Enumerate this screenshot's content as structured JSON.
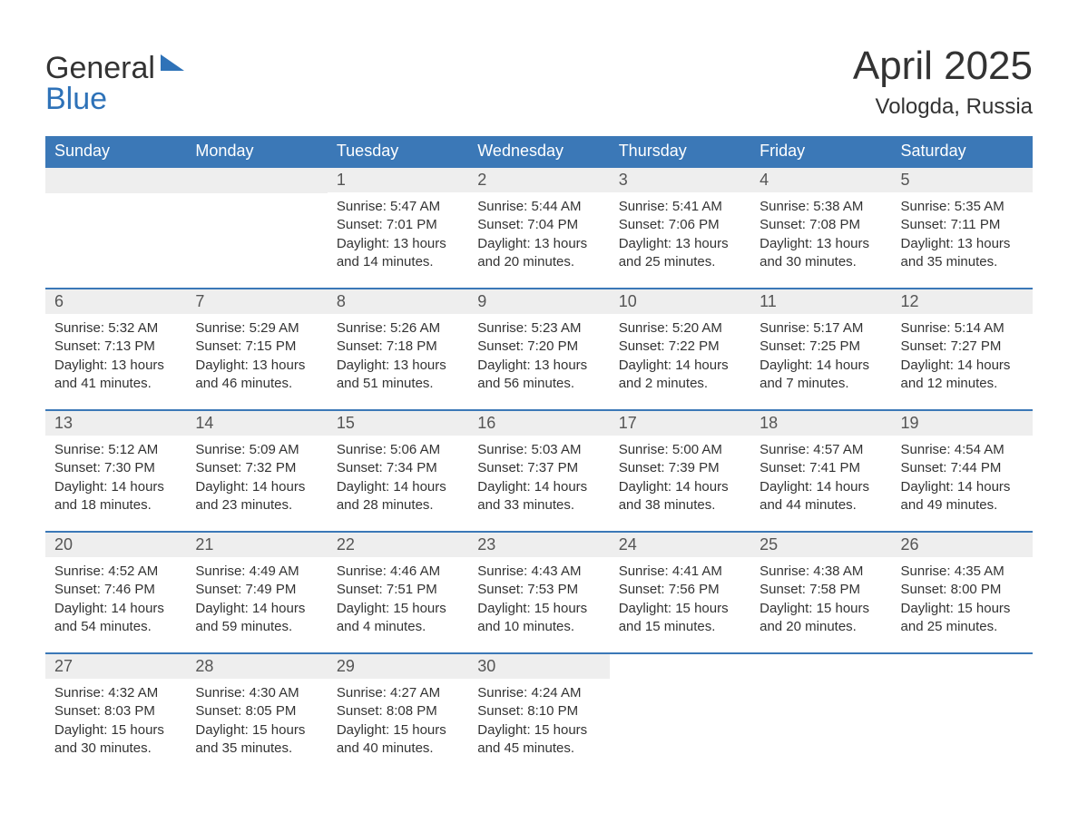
{
  "logo": {
    "text1": "General",
    "text2": "Blue"
  },
  "title": "April 2025",
  "location": "Vologda, Russia",
  "colors": {
    "header_bg": "#3b78b7",
    "header_text": "#ffffff",
    "daynum_bg": "#eeeeee",
    "body_text": "#333333",
    "logo_blue": "#2e72b8",
    "rule": "#3b78b7"
  },
  "weekdays": [
    "Sunday",
    "Monday",
    "Tuesday",
    "Wednesday",
    "Thursday",
    "Friday",
    "Saturday"
  ],
  "labels": {
    "sunrise": "Sunrise:",
    "sunset": "Sunset:",
    "daylight": "Daylight:"
  },
  "weeks": [
    [
      null,
      null,
      {
        "n": "1",
        "sunrise": "5:47 AM",
        "sunset": "7:01 PM",
        "daylight": "13 hours and 14 minutes."
      },
      {
        "n": "2",
        "sunrise": "5:44 AM",
        "sunset": "7:04 PM",
        "daylight": "13 hours and 20 minutes."
      },
      {
        "n": "3",
        "sunrise": "5:41 AM",
        "sunset": "7:06 PM",
        "daylight": "13 hours and 25 minutes."
      },
      {
        "n": "4",
        "sunrise": "5:38 AM",
        "sunset": "7:08 PM",
        "daylight": "13 hours and 30 minutes."
      },
      {
        "n": "5",
        "sunrise": "5:35 AM",
        "sunset": "7:11 PM",
        "daylight": "13 hours and 35 minutes."
      }
    ],
    [
      {
        "n": "6",
        "sunrise": "5:32 AM",
        "sunset": "7:13 PM",
        "daylight": "13 hours and 41 minutes."
      },
      {
        "n": "7",
        "sunrise": "5:29 AM",
        "sunset": "7:15 PM",
        "daylight": "13 hours and 46 minutes."
      },
      {
        "n": "8",
        "sunrise": "5:26 AM",
        "sunset": "7:18 PM",
        "daylight": "13 hours and 51 minutes."
      },
      {
        "n": "9",
        "sunrise": "5:23 AM",
        "sunset": "7:20 PM",
        "daylight": "13 hours and 56 minutes."
      },
      {
        "n": "10",
        "sunrise": "5:20 AM",
        "sunset": "7:22 PM",
        "daylight": "14 hours and 2 minutes."
      },
      {
        "n": "11",
        "sunrise": "5:17 AM",
        "sunset": "7:25 PM",
        "daylight": "14 hours and 7 minutes."
      },
      {
        "n": "12",
        "sunrise": "5:14 AM",
        "sunset": "7:27 PM",
        "daylight": "14 hours and 12 minutes."
      }
    ],
    [
      {
        "n": "13",
        "sunrise": "5:12 AM",
        "sunset": "7:30 PM",
        "daylight": "14 hours and 18 minutes."
      },
      {
        "n": "14",
        "sunrise": "5:09 AM",
        "sunset": "7:32 PM",
        "daylight": "14 hours and 23 minutes."
      },
      {
        "n": "15",
        "sunrise": "5:06 AM",
        "sunset": "7:34 PM",
        "daylight": "14 hours and 28 minutes."
      },
      {
        "n": "16",
        "sunrise": "5:03 AM",
        "sunset": "7:37 PM",
        "daylight": "14 hours and 33 minutes."
      },
      {
        "n": "17",
        "sunrise": "5:00 AM",
        "sunset": "7:39 PM",
        "daylight": "14 hours and 38 minutes."
      },
      {
        "n": "18",
        "sunrise": "4:57 AM",
        "sunset": "7:41 PM",
        "daylight": "14 hours and 44 minutes."
      },
      {
        "n": "19",
        "sunrise": "4:54 AM",
        "sunset": "7:44 PM",
        "daylight": "14 hours and 49 minutes."
      }
    ],
    [
      {
        "n": "20",
        "sunrise": "4:52 AM",
        "sunset": "7:46 PM",
        "daylight": "14 hours and 54 minutes."
      },
      {
        "n": "21",
        "sunrise": "4:49 AM",
        "sunset": "7:49 PM",
        "daylight": "14 hours and 59 minutes."
      },
      {
        "n": "22",
        "sunrise": "4:46 AM",
        "sunset": "7:51 PM",
        "daylight": "15 hours and 4 minutes."
      },
      {
        "n": "23",
        "sunrise": "4:43 AM",
        "sunset": "7:53 PM",
        "daylight": "15 hours and 10 minutes."
      },
      {
        "n": "24",
        "sunrise": "4:41 AM",
        "sunset": "7:56 PM",
        "daylight": "15 hours and 15 minutes."
      },
      {
        "n": "25",
        "sunrise": "4:38 AM",
        "sunset": "7:58 PM",
        "daylight": "15 hours and 20 minutes."
      },
      {
        "n": "26",
        "sunrise": "4:35 AM",
        "sunset": "8:00 PM",
        "daylight": "15 hours and 25 minutes."
      }
    ],
    [
      {
        "n": "27",
        "sunrise": "4:32 AM",
        "sunset": "8:03 PM",
        "daylight": "15 hours and 30 minutes."
      },
      {
        "n": "28",
        "sunrise": "4:30 AM",
        "sunset": "8:05 PM",
        "daylight": "15 hours and 35 minutes."
      },
      {
        "n": "29",
        "sunrise": "4:27 AM",
        "sunset": "8:08 PM",
        "daylight": "15 hours and 40 minutes."
      },
      {
        "n": "30",
        "sunrise": "4:24 AM",
        "sunset": "8:10 PM",
        "daylight": "15 hours and 45 minutes."
      },
      null,
      null,
      null
    ]
  ]
}
